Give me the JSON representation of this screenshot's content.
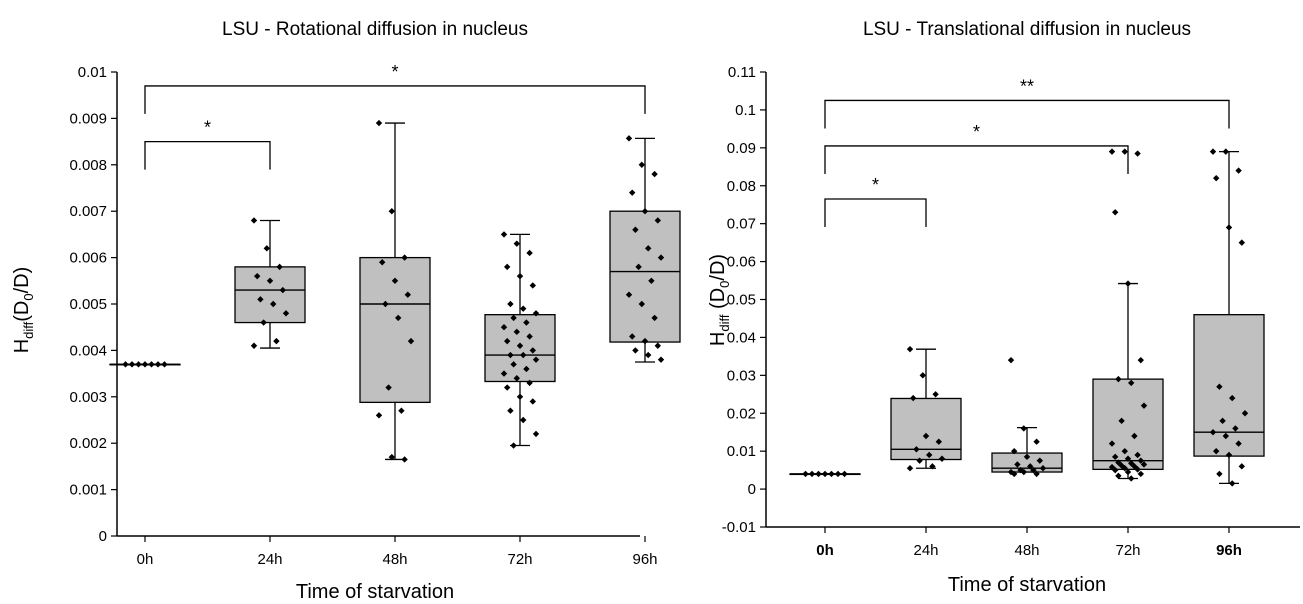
{
  "chart_data": [
    {
      "type": "box",
      "title": "LSU - Rotational diffusion in nucleus",
      "xlabel": "Time of starvation",
      "ylabel": {
        "main": "H",
        "sub1": "diff",
        "open": "(D",
        "sub2": "0",
        "close": "/D)"
      },
      "categories": [
        "0h",
        "24h",
        "48h",
        "72h",
        "96h"
      ],
      "ylim": [
        0,
        0.01
      ],
      "yticks": [
        "0",
        "0.001",
        "0.002",
        "0.003",
        "0.004",
        "0.005",
        "0.006",
        "0.007",
        "0.008",
        "0.009",
        "0.01"
      ],
      "grid": false,
      "box_fill": "#c0c0c0",
      "boxes": [
        {
          "category": "0h",
          "min": 0.0037,
          "q1": 0.0037,
          "median": 0.0037,
          "q3": 0.0037,
          "max": 0.0037,
          "points": [
            0.0037,
            0.0037,
            0.0037,
            0.0037,
            0.0037,
            0.0037,
            0.0037
          ]
        },
        {
          "category": "24h",
          "min": 0.00405,
          "q1": 0.0046,
          "median": 0.0053,
          "q3": 0.0058,
          "max": 0.0068,
          "points": [
            0.0068,
            0.0062,
            0.0058,
            0.0056,
            0.0055,
            0.0053,
            0.0051,
            0.005,
            0.0048,
            0.0046,
            0.0042,
            0.0041
          ]
        },
        {
          "category": "48h",
          "min": 0.00165,
          "q1": 0.00288,
          "median": 0.005,
          "q3": 0.006,
          "max": 0.0089,
          "points": [
            0.0089,
            0.007,
            0.006,
            0.0059,
            0.0055,
            0.0052,
            0.005,
            0.0047,
            0.0042,
            0.0032,
            0.0027,
            0.0026,
            0.0017,
            0.00165
          ]
        },
        {
          "category": "72h",
          "min": 0.00195,
          "q1": 0.00333,
          "median": 0.0039,
          "q3": 0.00477,
          "max": 0.0065,
          "points": [
            0.0065,
            0.0063,
            0.0061,
            0.0058,
            0.0056,
            0.0054,
            0.005,
            0.0049,
            0.0048,
            0.0047,
            0.0046,
            0.0045,
            0.0044,
            0.0043,
            0.0042,
            0.0041,
            0.004,
            0.0039,
            0.0039,
            0.0038,
            0.0037,
            0.0036,
            0.0035,
            0.0034,
            0.0033,
            0.0032,
            0.003,
            0.0029,
            0.0027,
            0.0025,
            0.0022,
            0.00195
          ]
        },
        {
          "category": "96h",
          "min": 0.00375,
          "q1": 0.00418,
          "median": 0.0057,
          "q3": 0.007,
          "max": 0.00857,
          "points": [
            0.00857,
            0.008,
            0.0078,
            0.0074,
            0.007,
            0.0068,
            0.0066,
            0.0062,
            0.006,
            0.0058,
            0.0055,
            0.0052,
            0.005,
            0.0047,
            0.0043,
            0.0042,
            0.0041,
            0.004,
            0.0039,
            0.0038
          ]
        }
      ],
      "significance": [
        {
          "from": "0h",
          "to": "24h",
          "label": "*",
          "y": 0.0085
        },
        {
          "from": "0h",
          "to": "96h",
          "label": "*",
          "y": 0.0097
        }
      ]
    },
    {
      "type": "box",
      "title": "LSU - Translational diffusion in nucleus",
      "xlabel": "Time of starvation",
      "ylabel": {
        "main": "H",
        "sub1": "diff",
        "open": " (D",
        "sub2": "0",
        "close": "/D)"
      },
      "categories": [
        "0h",
        "24h",
        "48h",
        "72h",
        "96h"
      ],
      "category_bold": [
        true,
        false,
        false,
        false,
        true
      ],
      "ylim": [
        -0.01,
        0.11
      ],
      "yticks": [
        "-0.01",
        "0",
        "0.01",
        "0.02",
        "0.03",
        "0.04",
        "0.05",
        "0.06",
        "0.07",
        "0.08",
        "0.09",
        "0.1",
        "0.11"
      ],
      "grid": false,
      "box_fill": "#c0c0c0",
      "boxes": [
        {
          "category": "0h",
          "min": 0.004,
          "q1": 0.004,
          "median": 0.004,
          "q3": 0.004,
          "max": 0.004,
          "points": [
            0.004,
            0.004,
            0.004,
            0.004,
            0.004,
            0.004,
            0.004
          ]
        },
        {
          "category": "24h",
          "min": 0.0055,
          "q1": 0.0078,
          "median": 0.0105,
          "q3": 0.0239,
          "max": 0.0369,
          "points": [
            0.0369,
            0.03,
            0.025,
            0.024,
            0.014,
            0.0125,
            0.0105,
            0.009,
            0.008,
            0.0075,
            0.006,
            0.0055
          ]
        },
        {
          "category": "48h",
          "min": 0.0045,
          "q1": 0.0045,
          "median": 0.0055,
          "q3": 0.0095,
          "max": 0.0162,
          "points": [
            0.034,
            0.016,
            0.0125,
            0.01,
            0.0085,
            0.0075,
            0.0065,
            0.006,
            0.0055,
            0.005,
            0.005,
            0.0045,
            0.0045,
            0.004,
            0.004
          ]
        },
        {
          "category": "72h",
          "min": 0.0028,
          "q1": 0.0052,
          "median": 0.0075,
          "q3": 0.029,
          "max": 0.0542,
          "points": [
            0.089,
            0.089,
            0.0885,
            0.073,
            0.0542,
            0.034,
            0.029,
            0.028,
            0.022,
            0.018,
            0.014,
            0.012,
            0.01,
            0.009,
            0.0085,
            0.008,
            0.0075,
            0.007,
            0.0068,
            0.0065,
            0.0062,
            0.006,
            0.0058,
            0.0055,
            0.0052,
            0.005,
            0.0045,
            0.004,
            0.0035,
            0.0028
          ]
        },
        {
          "category": "96h",
          "min": 0.0015,
          "q1": 0.0087,
          "median": 0.015,
          "q3": 0.046,
          "max": 0.089,
          "points": [
            0.089,
            0.089,
            0.084,
            0.082,
            0.069,
            0.065,
            0.027,
            0.024,
            0.02,
            0.018,
            0.016,
            0.015,
            0.014,
            0.012,
            0.01,
            0.009,
            0.006,
            0.004,
            0.0015
          ]
        }
      ],
      "significance": [
        {
          "from": "0h",
          "to": "24h",
          "label": "*",
          "y": 0.0765
        },
        {
          "from": "0h",
          "to": "72h",
          "label": "*",
          "y": 0.0905
        },
        {
          "from": "0h",
          "to": "96h",
          "label": "**",
          "y": 0.1025
        }
      ]
    }
  ]
}
